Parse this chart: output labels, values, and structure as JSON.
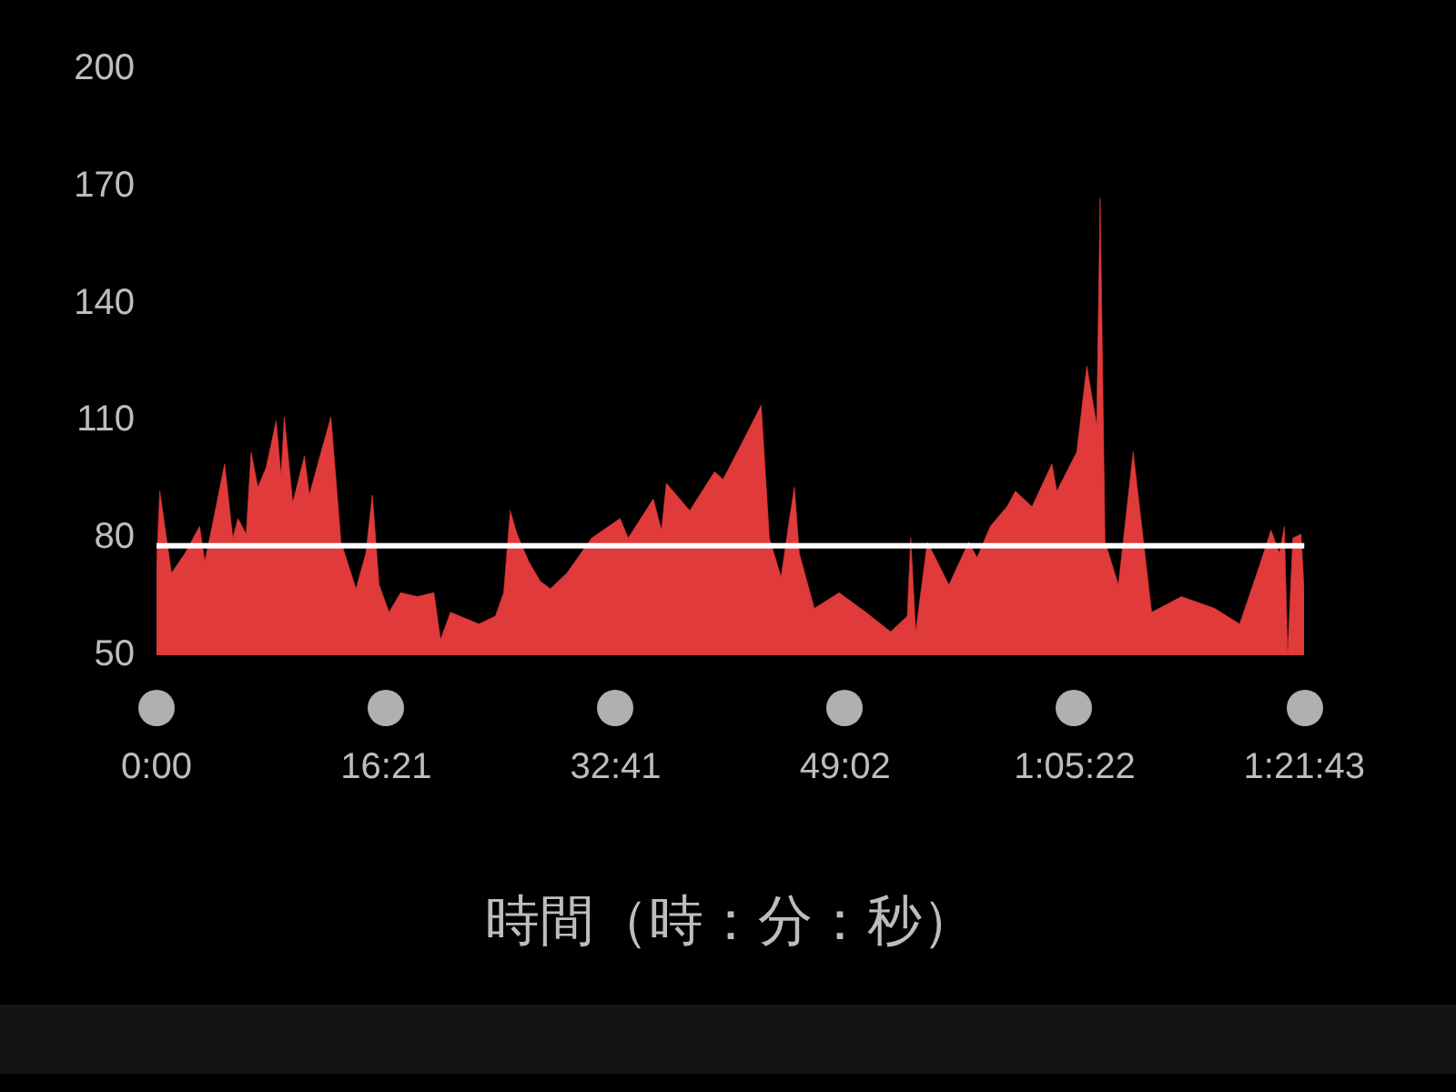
{
  "chart_data": {
    "type": "area",
    "xlabel": "時間（時：分：秒）",
    "x": [
      0,
      14,
      64,
      121,
      184,
      206,
      241,
      291,
      326,
      348,
      383,
      404,
      433,
      468,
      511,
      532,
      546,
      582,
      632,
      653,
      703,
      745,
      788,
      852,
      894,
      922,
      951,
      993,
      1043,
      1114,
      1185,
      1213,
      1256,
      1377,
      1448,
      1483,
      1511,
      1540,
      1590,
      1639,
      1682,
      1753,
      1859,
      1980,
      2015,
      2122,
      2157,
      2178,
      2278,
      2384,
      2420,
      2498,
      2583,
      2618,
      2668,
      2704,
      2725,
      2746,
      2810,
      2916,
      3030,
      3136,
      3207,
      3222,
      3243,
      3293,
      3385,
      3470,
      3505,
      3562,
      3633,
      3669,
      3740,
      3825,
      3846,
      3931,
      3974,
      4016,
      4031,
      4052,
      4109,
      4172,
      4251,
      4378,
      4520,
      4627,
      4712,
      4761,
      4797,
      4818,
      4832,
      4854,
      4889,
      4903
    ],
    "series": [
      {
        "color": "#e03a3a",
        "values": [
          73,
          92,
          71,
          76,
          83,
          74,
          84,
          99,
          80,
          85,
          81,
          102,
          93,
          98,
          110,
          96,
          111,
          89,
          101,
          91,
          102,
          111,
          79,
          67,
          76,
          91,
          68,
          61,
          66,
          65,
          66,
          54,
          61,
          58,
          60,
          66,
          87,
          81,
          74,
          69,
          67,
          71,
          80,
          85,
          80,
          90,
          82,
          94,
          87,
          97,
          95,
          104,
          114,
          80,
          70,
          85,
          93,
          76,
          62,
          66,
          61,
          56,
          60,
          80,
          56,
          79,
          68,
          79,
          75,
          83,
          88,
          92,
          88,
          99,
          92,
          102,
          124,
          109,
          167,
          79,
          68,
          102,
          61,
          65,
          62,
          58,
          73,
          82,
          76,
          83,
          50,
          80,
          81,
          66
        ]
      }
    ],
    "xlim": [
      0,
      4903
    ],
    "xticks": [
      {
        "value": 0,
        "label": "0:00"
      },
      {
        "value": 981,
        "label": "16:21"
      },
      {
        "value": 1961,
        "label": "32:41"
      },
      {
        "value": 2942,
        "label": "49:02"
      },
      {
        "value": 3922,
        "label": "1:05:22"
      },
      {
        "value": 4903,
        "label": "1:21:43"
      }
    ],
    "ylim": [
      50,
      200
    ],
    "yticks": [
      50,
      80,
      110,
      140,
      170,
      200
    ],
    "ref_lines": [
      {
        "axis": "y",
        "value": 78,
        "color": "#ffffff"
      }
    ],
    "grid": false,
    "legend": false,
    "marker": "none",
    "line_style": "solid"
  }
}
